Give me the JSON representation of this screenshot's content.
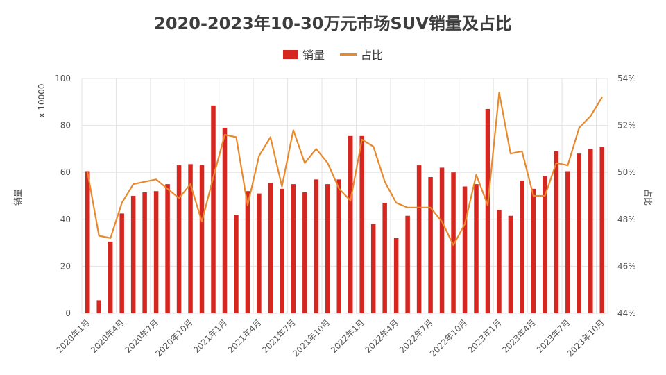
{
  "chart_data": {
    "type": "bar+line",
    "title": "2020-2023年10-30万元市场SUV销量及占比",
    "ylabel_left": "销量",
    "yunit_left": "x 10000",
    "ylabel_right": "占比",
    "ylim_left": [
      0,
      100
    ],
    "ylim_right": [
      44,
      54
    ],
    "yticks_left": [
      "0",
      "20",
      "40",
      "60",
      "80",
      "100"
    ],
    "yticks_right": [
      "44%",
      "46%",
      "48%",
      "50%",
      "52%",
      "54%"
    ],
    "legend": [
      "销量",
      "占比"
    ],
    "legend_position": "top-center",
    "colors": {
      "bar": "#d5261f",
      "line": "#e8892c"
    },
    "xtick_labels": [
      "2020年1月",
      "2020年4月",
      "2020年7月",
      "2020年10月",
      "2021年1月",
      "2021年4月",
      "2021年7月",
      "2021年10月",
      "2022年1月",
      "2022年4月",
      "2022年7月",
      "2022年10月",
      "2023年1月",
      "2023年4月",
      "2023年7月",
      "2023年10月"
    ],
    "categories": [
      "2020年1月",
      "2020年2月",
      "2020年3月",
      "2020年4月",
      "2020年5月",
      "2020年6月",
      "2020年7月",
      "2020年8月",
      "2020年9月",
      "2020年10月",
      "2020年11月",
      "2020年12月",
      "2021年1月",
      "2021年2月",
      "2021年3月",
      "2021年4月",
      "2021年5月",
      "2021年6月",
      "2021年7月",
      "2021年8月",
      "2021年9月",
      "2021年10月",
      "2021年11月",
      "2021年12月",
      "2022年1月",
      "2022年2月",
      "2022年3月",
      "2022年4月",
      "2022年5月",
      "2022年6月",
      "2022年7月",
      "2022年8月",
      "2022年9月",
      "2022年10月",
      "2022年11月",
      "2022年12月",
      "2023年1月",
      "2023年2月",
      "2023年3月",
      "2023年4月",
      "2023年5月",
      "2023年6月",
      "2023年7月",
      "2023年8月",
      "2023年9月",
      "2023年10月"
    ],
    "series": [
      {
        "name": "销量",
        "type": "bar",
        "values": [
          60.5,
          5.5,
          30.5,
          42.5,
          50,
          51.5,
          52,
          55,
          63,
          63.5,
          63,
          88.5,
          79,
          42,
          52,
          51,
          55.5,
          53,
          55,
          51.5,
          57,
          55,
          57,
          75.5,
          75.5,
          38,
          47,
          32,
          41.5,
          63,
          58,
          62,
          60,
          54,
          55,
          87,
          44,
          41.5,
          56.5,
          53,
          58.5,
          69,
          60.5,
          68,
          70,
          71
        ]
      },
      {
        "name": "占比",
        "type": "line",
        "values": [
          50.0,
          47.3,
          47.2,
          48.7,
          49.5,
          49.6,
          49.7,
          49.3,
          48.9,
          49.5,
          47.9,
          49.8,
          51.6,
          51.5,
          48.6,
          50.7,
          51.5,
          49.4,
          51.8,
          50.4,
          51.0,
          50.4,
          49.3,
          48.8,
          51.4,
          51.1,
          49.6,
          48.7,
          48.5,
          48.5,
          48.5,
          47.9,
          46.9,
          47.8,
          49.9,
          48.6,
          53.4,
          50.8,
          50.9,
          49.0,
          49.0,
          50.4,
          50.3,
          51.9,
          52.4,
          53.2
        ]
      }
    ],
    "grid": true
  }
}
